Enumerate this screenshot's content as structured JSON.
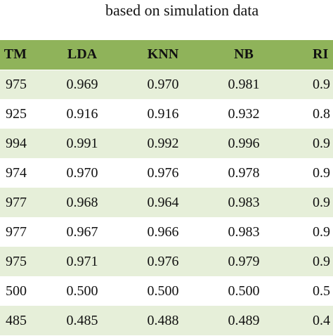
{
  "caption": "based on simulation data",
  "table": {
    "header": [
      "TM",
      "LDA",
      "KNN",
      "NB",
      "RI"
    ],
    "rows": [
      [
        "975",
        "0.969",
        "0.970",
        "0.981",
        "0.9"
      ],
      [
        "925",
        "0.916",
        "0.916",
        "0.932",
        "0.8"
      ],
      [
        "994",
        "0.991",
        "0.992",
        "0.996",
        "0.9"
      ],
      [
        "974",
        "0.970",
        "0.976",
        "0.978",
        "0.9"
      ],
      [
        "977",
        "0.968",
        "0.964",
        "0.983",
        "0.9"
      ],
      [
        "977",
        "0.967",
        "0.966",
        "0.983",
        "0.9"
      ],
      [
        "975",
        "0.971",
        "0.976",
        "0.979",
        "0.9"
      ],
      [
        "500",
        "0.500",
        "0.500",
        "0.500",
        "0.5"
      ],
      [
        "485",
        "0.485",
        "0.488",
        "0.489",
        "0.4"
      ]
    ]
  }
}
